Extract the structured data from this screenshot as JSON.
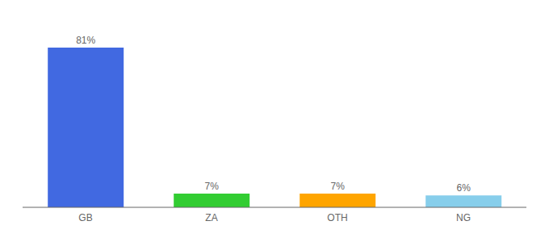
{
  "chart_data": {
    "type": "bar",
    "categories": [
      "GB",
      "ZA",
      "OTH",
      "NG"
    ],
    "values": [
      81,
      7,
      7,
      6
    ],
    "value_labels": [
      "81%",
      "7%",
      "7%",
      "6%"
    ],
    "colors": [
      "#4169e1",
      "#32cd32",
      "#ffa500",
      "#87ceeb"
    ],
    "ylim": [
      0,
      92
    ],
    "data_labels": true,
    "tick_labels": "x",
    "grid": false
  }
}
